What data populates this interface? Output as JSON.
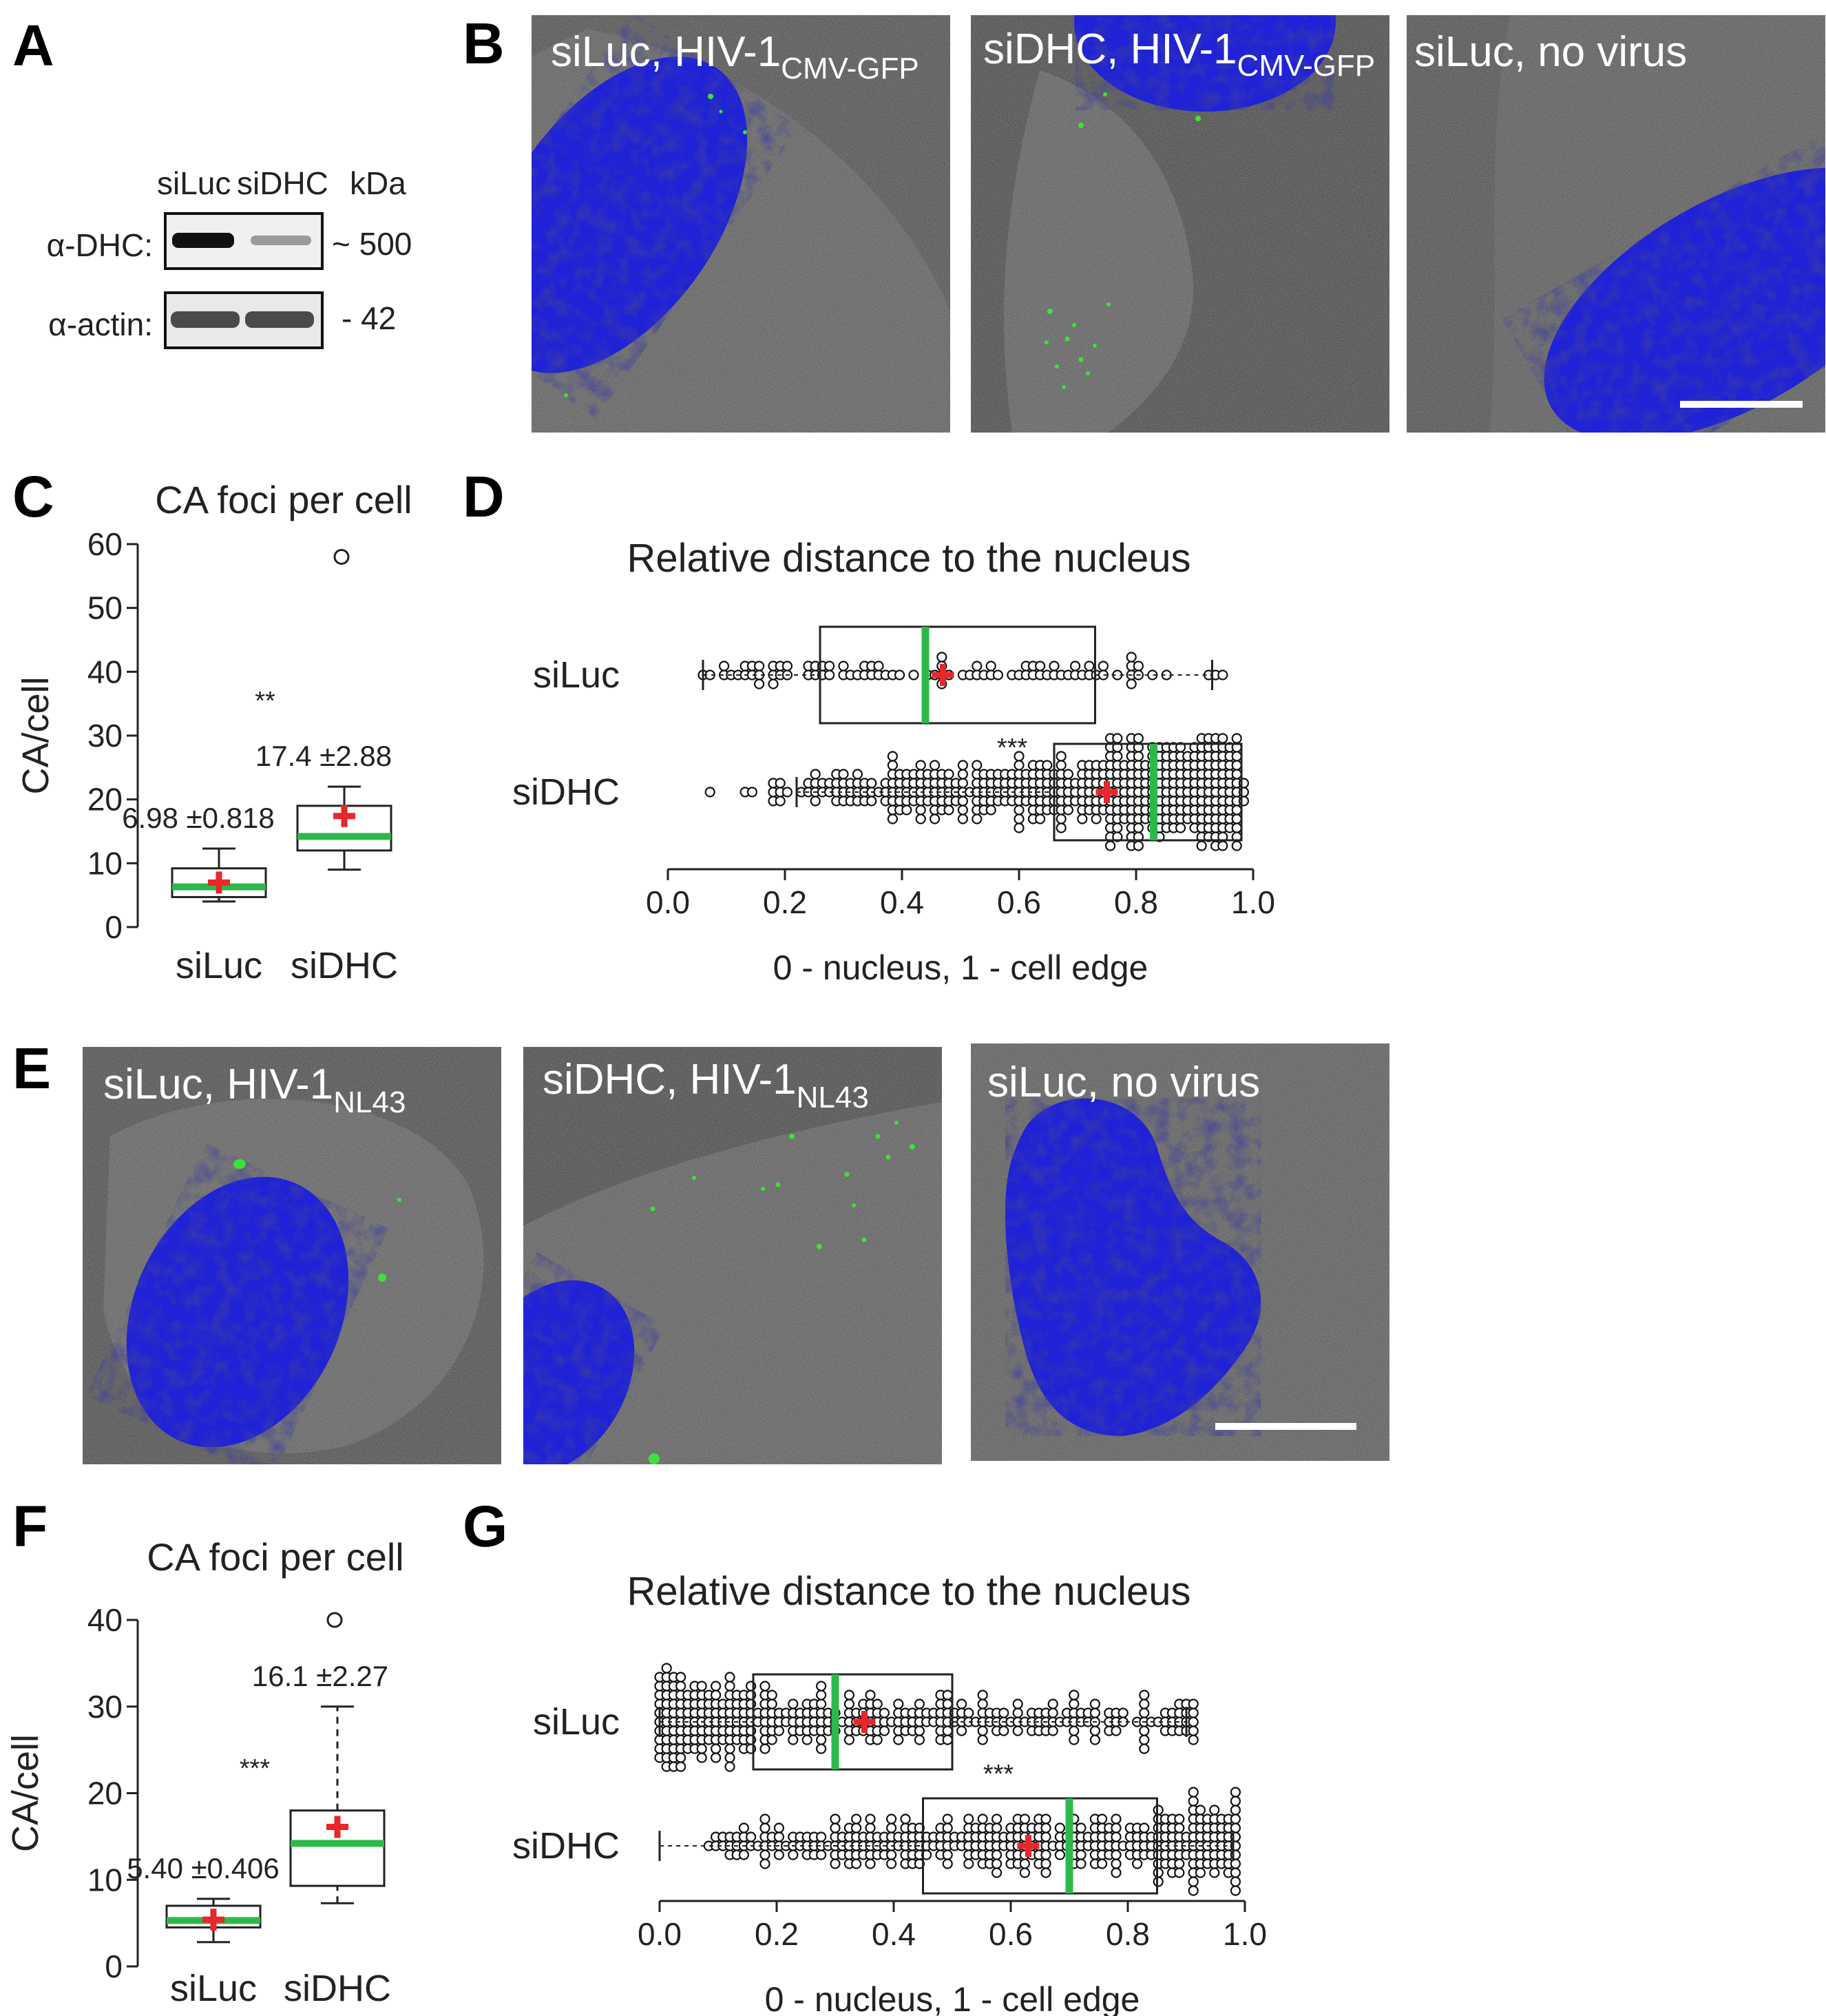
{
  "panel_letters": [
    "A",
    "B",
    "C",
    "D",
    "E",
    "F",
    "G"
  ],
  "panelA": {
    "lanes": [
      "siLuc",
      "siDHC"
    ],
    "kda_header": "kDa",
    "rows": [
      {
        "label": "α-DHC:",
        "kda": "~ 500"
      },
      {
        "label": "α-actin:",
        "kda": "- 42"
      }
    ]
  },
  "panelB": {
    "images": [
      {
        "label": "siLuc, HIV-1",
        "sub": "CMV-GFP"
      },
      {
        "label": "siDHC, HIV-1",
        "sub": "CMV-GFP"
      },
      {
        "label": "siLuc, no virus",
        "sub": ""
      }
    ]
  },
  "panelE": {
    "images": [
      {
        "label": "siLuc, HIV-1",
        "sub": "NL43"
      },
      {
        "label": "siDHC, HIV-1",
        "sub": "NL43"
      },
      {
        "label": "siLuc, no virus",
        "sub": ""
      }
    ]
  },
  "colors": {
    "median_line": "#2db84a",
    "mean_marker": "#e8262b",
    "nucleus": "#1f22d6",
    "gfp": "#3fe03a",
    "cell_bg": "#3a3a3a"
  },
  "chart_data": [
    {
      "panel": "C",
      "type": "box",
      "title": "CA foci per cell",
      "ylabel": "CA/cell",
      "ylim": [
        0,
        60
      ],
      "yticks": [
        0,
        10,
        20,
        30,
        40,
        50,
        60
      ],
      "categories": [
        "siLuc",
        "siDHC"
      ],
      "boxes": [
        {
          "name": "siLuc",
          "whisker_low": 4,
          "q1": 4.7,
          "median": 6.3,
          "q3": 9.2,
          "whisker_high": 12.3,
          "mean": 6.98,
          "annotation": "6.98 ±0.818",
          "outliers": []
        },
        {
          "name": "siDHC",
          "whisker_low": 9,
          "q1": 12,
          "median": 14.2,
          "q3": 19,
          "whisker_high": 22,
          "mean": 17.4,
          "annotation": "17.4 ±2.88",
          "outliers": [
            58
          ]
        }
      ],
      "significance": "**"
    },
    {
      "panel": "D",
      "type": "box",
      "title": "Relative distance to the nucleus",
      "xlabel": "0 - nucleus, 1 - cell edge",
      "xlim": [
        0,
        1
      ],
      "xticks": [
        "0.0",
        "0.2",
        "0.4",
        "0.6",
        "0.8",
        "1.0"
      ],
      "categories": [
        "siLuc",
        "siDHC"
      ],
      "boxes": [
        {
          "name": "siLuc",
          "whisker_low": 0.06,
          "q1": 0.26,
          "median": 0.44,
          "q3": 0.73,
          "whisker_high": 0.93,
          "mean": 0.47,
          "n_points": 90,
          "spread": 1,
          "scatter_mode": "random"
        },
        {
          "name": "siDHC",
          "whisker_low": 0.22,
          "q1": 0.66,
          "median": 0.83,
          "q3": 0.98,
          "whisker_high": 0.98,
          "mean": 0.75,
          "n_points": 440,
          "spread": 4,
          "scatter_mode": "skew-right"
        }
      ],
      "significance": "***"
    },
    {
      "panel": "F",
      "type": "box",
      "title": "CA foci per cell",
      "ylabel": "CA/cell",
      "ylim": [
        0,
        40
      ],
      "yticks": [
        0,
        10,
        20,
        30,
        40
      ],
      "categories": [
        "siLuc",
        "siDHC"
      ],
      "boxes": [
        {
          "name": "siLuc",
          "whisker_low": 2.8,
          "q1": 4.5,
          "median": 5.3,
          "q3": 7,
          "whisker_high": 7.8,
          "mean": 5.4,
          "annotation": "5.40 ±0.406",
          "outliers": []
        },
        {
          "name": "siDHC",
          "whisker_low": 7.3,
          "q1": 9.3,
          "median": 14.2,
          "q3": 18,
          "whisker_high": 30,
          "mean": 16.1,
          "annotation": "16.1 ±2.27",
          "outliers": [
            40
          ]
        }
      ],
      "significance": "***"
    },
    {
      "panel": "G",
      "type": "box",
      "title": "Relative distance to the nucleus",
      "xlabel": "0 - nucleus, 1 - cell edge",
      "xlim": [
        0,
        1
      ],
      "xticks": [
        "0.0",
        "0.2",
        "0.4",
        "0.6",
        "0.8",
        "1.0"
      ],
      "categories": [
        "siLuc",
        "siDHC"
      ],
      "boxes": [
        {
          "name": "siLuc",
          "whisker_low": 0.0,
          "q1": 0.16,
          "median": 0.3,
          "q3": 0.5,
          "whisker_high": 0.9,
          "mean": 0.35,
          "n_points": 330,
          "spread": 2.4,
          "scatter_mode": "skew-left"
        },
        {
          "name": "siDHC",
          "whisker_low": 0.0,
          "q1": 0.45,
          "median": 0.7,
          "q3": 0.85,
          "whisker_high": 0.98,
          "mean": 0.63,
          "n_points": 340,
          "spread": 2.6,
          "scatter_mode": "mid-right"
        }
      ],
      "significance": "***"
    }
  ]
}
